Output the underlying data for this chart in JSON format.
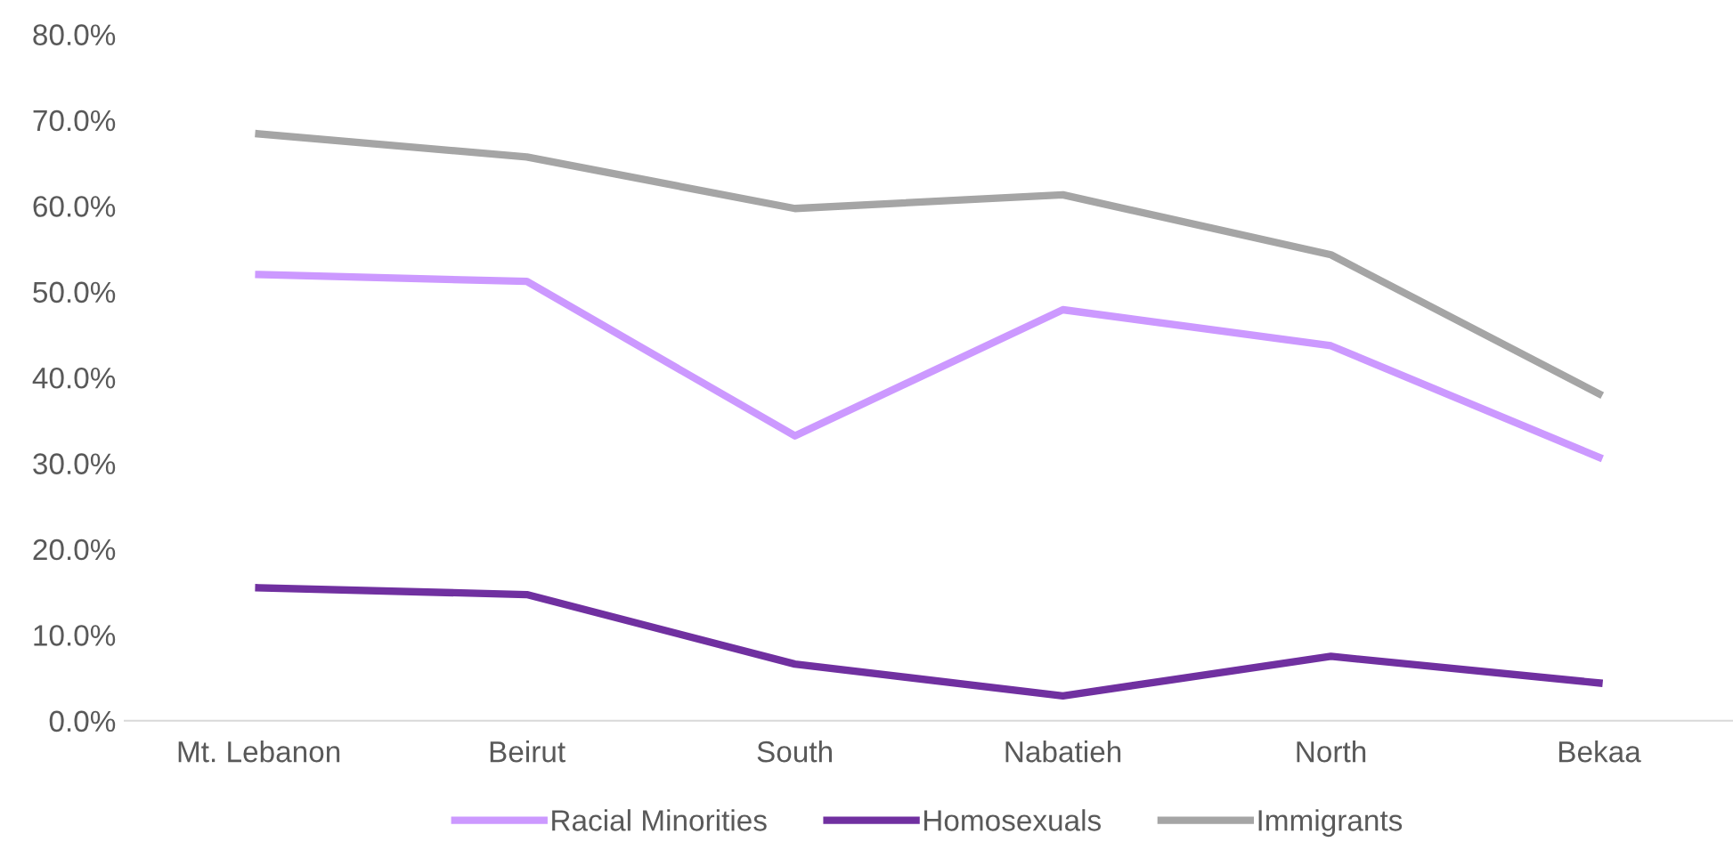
{
  "chart_data": {
    "type": "line",
    "categories": [
      "Mt. Lebanon",
      "Beirut",
      "South",
      "Nabatieh",
      "North",
      "Bekaa"
    ],
    "series": [
      {
        "name": "Racial Minorities",
        "color": "#cc99ff",
        "values": [
          52.0,
          51.2,
          33.2,
          47.9,
          43.7,
          30.7
        ]
      },
      {
        "name": "Homosexuals",
        "color": "#7030a0",
        "values": [
          15.5,
          14.7,
          6.6,
          2.9,
          7.5,
          4.4
        ]
      },
      {
        "name": "Immigrants",
        "color": "#a5a5a5",
        "values": [
          68.4,
          65.7,
          59.7,
          61.3,
          54.3,
          38.1
        ]
      }
    ],
    "ylim": [
      0,
      80
    ],
    "yticks": [
      {
        "value": 0,
        "label": "0.0%"
      },
      {
        "value": 10,
        "label": "10.0%"
      },
      {
        "value": 20,
        "label": "20.0%"
      },
      {
        "value": 30,
        "label": "30.0%"
      },
      {
        "value": 40,
        "label": "40.0%"
      },
      {
        "value": 50,
        "label": "50.0%"
      },
      {
        "value": 60,
        "label": "60.0%"
      },
      {
        "value": 70,
        "label": "70.0%"
      },
      {
        "value": 80,
        "label": "80.0%"
      }
    ],
    "legend": "bottom",
    "marker": "none",
    "line_style": "solid"
  }
}
